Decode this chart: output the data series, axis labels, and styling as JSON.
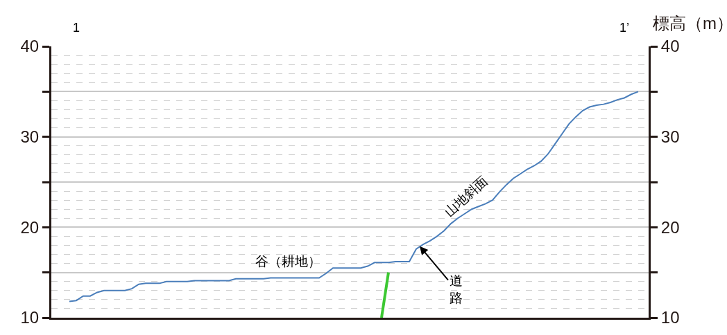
{
  "chart_data": {
    "type": "line",
    "y2label": "標高（m）",
    "categories": [
      null,
      null,
      null,
      null,
      null,
      null,
      null,
      null,
      null,
      null,
      null,
      null,
      null,
      null,
      null,
      null,
      null,
      null,
      null,
      null,
      null,
      null,
      null,
      null,
      null,
      null,
      null,
      null,
      null,
      null,
      null,
      null,
      null,
      null,
      null,
      null,
      null,
      null,
      null,
      null,
      null,
      null,
      null,
      null,
      null,
      null,
      null,
      null,
      null,
      null,
      null,
      null,
      null,
      null,
      null,
      null,
      null,
      null,
      null,
      null,
      null,
      null,
      null,
      null,
      null,
      null,
      null,
      null,
      null,
      null,
      null,
      null,
      null,
      null,
      null,
      null,
      null,
      null,
      null,
      null,
      null,
      null,
      null
    ],
    "series": [
      {
        "color": "#4a7ebb",
        "values": [
          11.8,
          11.9,
          12.4,
          12.4,
          12.8,
          13.0,
          13.0,
          13.0,
          13.0,
          13.2,
          13.7,
          13.8,
          13.8,
          13.8,
          14.0,
          14.0,
          14.0,
          14.0,
          14.1,
          14.1,
          14.1,
          14.1,
          14.1,
          14.1,
          14.3,
          14.3,
          14.3,
          14.3,
          14.3,
          14.4,
          14.4,
          14.4,
          14.4,
          14.4,
          14.4,
          14.4,
          14.4,
          14.9,
          15.5,
          15.5,
          15.5,
          15.5,
          15.5,
          15.7,
          16.1,
          16.1,
          16.1,
          16.2,
          16.2,
          16.2,
          17.6,
          18.1,
          18.5,
          19.0,
          19.6,
          20.4,
          21.0,
          21.5,
          22.0,
          22.3,
          22.6,
          23.0,
          23.9,
          24.7,
          25.4,
          25.9,
          26.4,
          26.8,
          27.3,
          28.1,
          29.2,
          30.3,
          31.4,
          32.2,
          32.9,
          33.3,
          33.5,
          33.6,
          33.8,
          34.1,
          34.3,
          34.7,
          35.0
        ]
      },
      {
        "color": "#3cc832",
        "values": [
          null,
          null,
          null,
          null,
          null,
          null,
          null,
          null,
          null,
          null,
          null,
          null,
          null,
          null,
          null,
          null,
          null,
          null,
          null,
          null,
          null,
          null,
          null,
          null,
          null,
          null,
          null,
          null,
          null,
          null,
          null,
          null,
          null,
          null,
          null,
          null,
          null,
          null,
          null,
          null,
          null,
          null,
          null,
          null,
          null,
          10,
          15,
          null,
          null,
          null,
          null,
          null,
          null,
          null,
          null,
          null,
          null,
          null,
          null,
          null,
          null,
          null,
          null,
          null,
          null,
          null,
          null,
          null,
          null,
          null,
          null,
          null,
          null,
          null,
          null,
          null,
          null,
          null,
          null,
          null,
          null,
          null,
          null
        ]
      }
    ],
    "ylim": [
      10,
      40
    ],
    "yticks": [
      10,
      {
        "value": 15,
        "label": null
      },
      20,
      {
        "value": 25,
        "label": null
      },
      30,
      {
        "value": 35,
        "label": null
      },
      40
    ],
    "y2lim": [
      10,
      40
    ],
    "y2ticks": [
      10,
      {
        "value": 15,
        "label": null
      },
      20,
      {
        "value": 25,
        "label": null
      },
      30,
      {
        "value": 35,
        "label": null
      },
      40
    ],
    "tick_labels": "y",
    "grid": "y",
    "marker": "none",
    "line_style": "solid",
    "annotations": [
      "1",
      "1’",
      "谷（耕地）",
      "山地斜面",
      "道路"
    ]
  }
}
